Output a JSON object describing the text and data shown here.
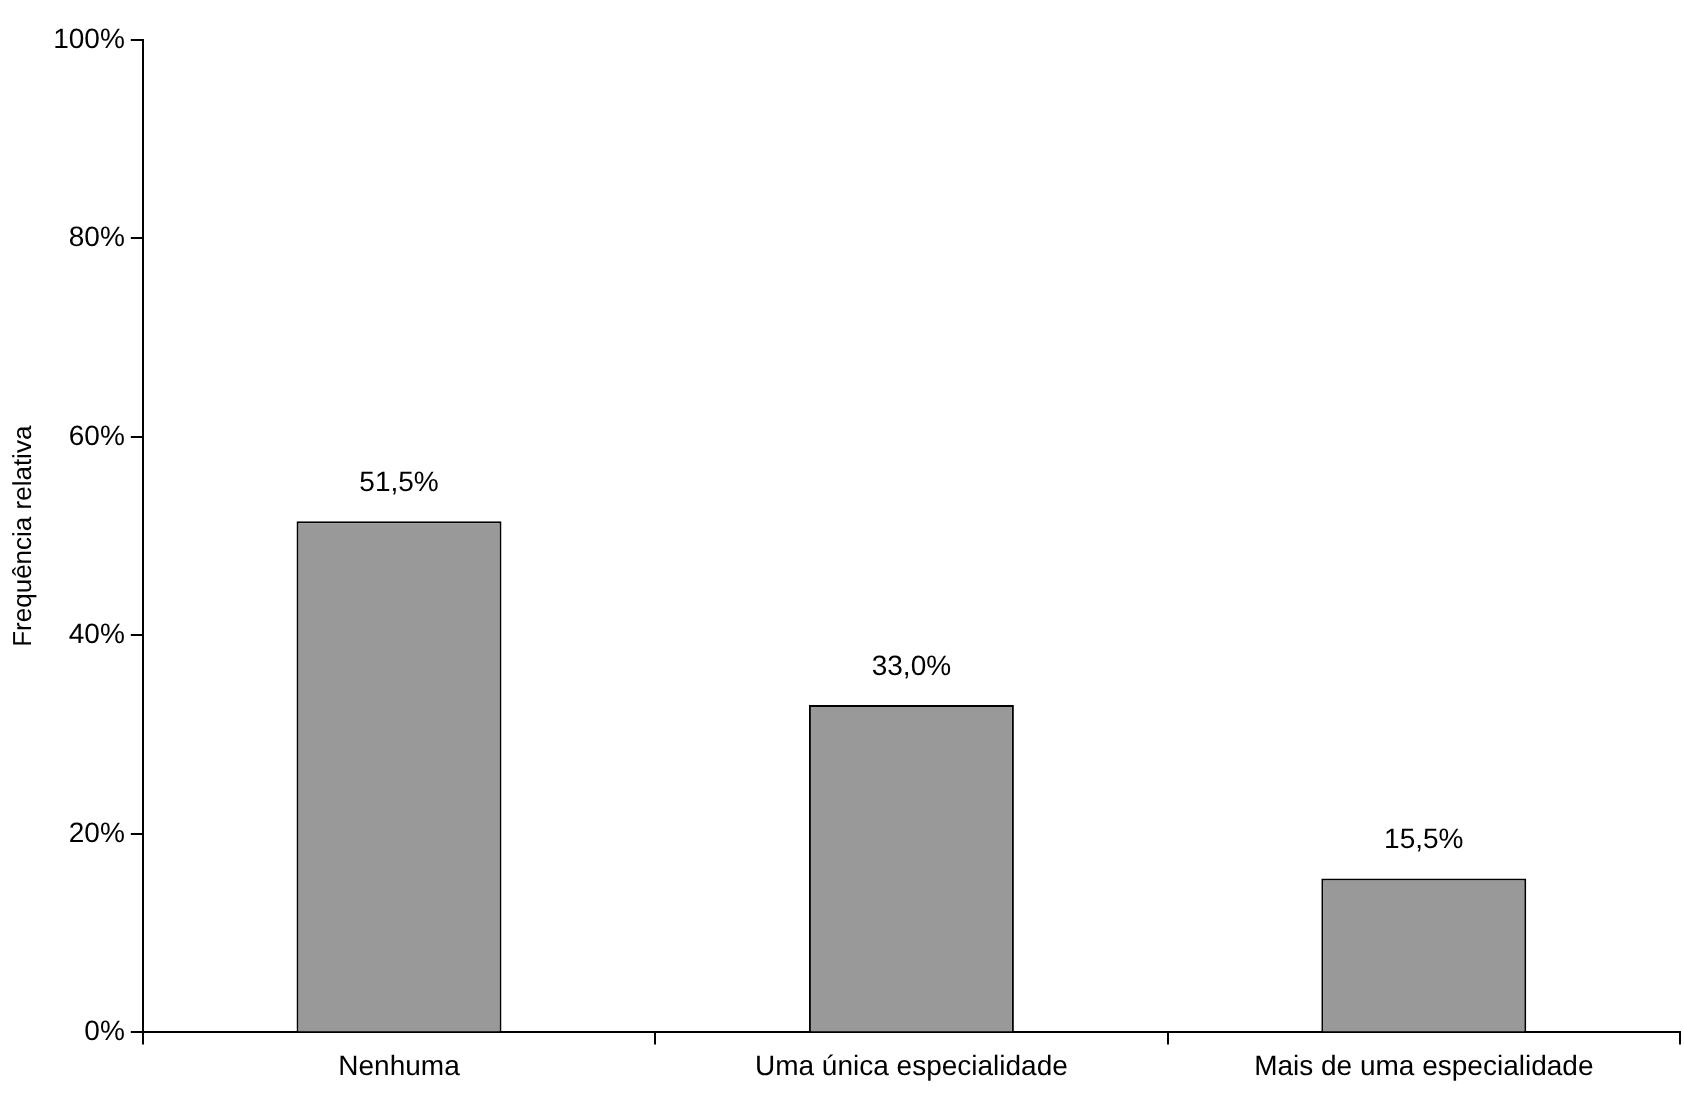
{
  "chart_data": {
    "type": "bar",
    "ylabel": "Frequência relativa",
    "categories": [
      "Nenhuma",
      "Uma única especialidade",
      "Mais de uma especialidade"
    ],
    "values": [
      51.5,
      33.0,
      15.5
    ],
    "color": "#999999",
    "value_labels": [
      "51,5%",
      "33,0%",
      "15,5%"
    ],
    "ylim": [
      0,
      100
    ],
    "yticks": [
      {
        "value": 0,
        "label": "0%"
      },
      {
        "value": 20,
        "label": "20%"
      },
      {
        "value": 40,
        "label": "40%"
      },
      {
        "value": 60,
        "label": "60%"
      },
      {
        "value": 80,
        "label": "80%"
      },
      {
        "value": 100,
        "label": "100%"
      }
    ],
    "grid": false,
    "legend": false
  }
}
